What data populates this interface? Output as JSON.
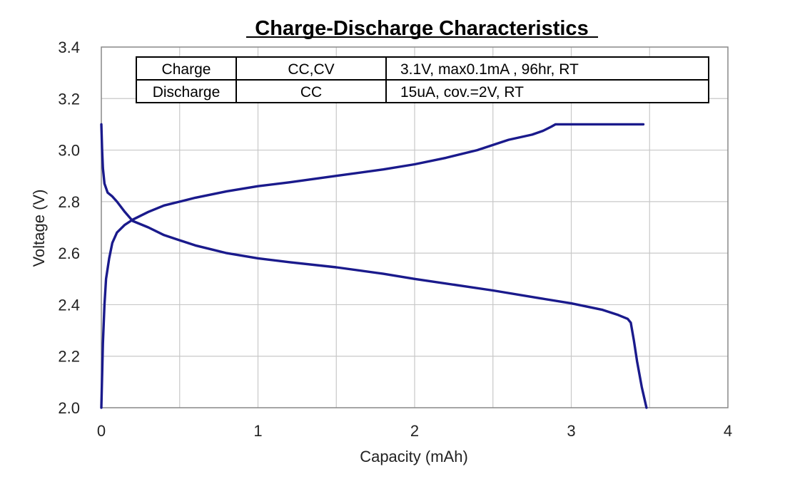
{
  "chart_data": {
    "type": "line",
    "title": "Charge-Discharge Characteristics",
    "xlabel": "Capacity (mAh)",
    "ylabel": "Voltage (V)",
    "xlim": [
      0,
      4
    ],
    "ylim": [
      2.0,
      3.4
    ],
    "xticks": [
      "0",
      "1",
      "2",
      "3",
      "4"
    ],
    "yticks": [
      "2.0",
      "2.2",
      "2.4",
      "2.6",
      "2.8",
      "3.0",
      "3.2",
      "3.4"
    ],
    "grid": true,
    "line_color": "#1a1a8c",
    "condition_table": [
      [
        "Charge",
        "CC,CV",
        "3.1V,  max0.1mA , 96hr,   RT"
      ],
      [
        "Discharge",
        "CC",
        "15uA,  cov.=2V,   RT"
      ]
    ],
    "series": [
      {
        "x": [
          0.0,
          0.01,
          0.02,
          0.03,
          0.05,
          0.07,
          0.1,
          0.15,
          0.2,
          0.3,
          0.4,
          0.5,
          0.6,
          0.8,
          1.0,
          1.2,
          1.5,
          1.8,
          2.0,
          2.2,
          2.4,
          2.6,
          2.75,
          2.82,
          2.87,
          2.9,
          3.0,
          3.2,
          3.46
        ],
        "y": [
          2.0,
          2.25,
          2.4,
          2.5,
          2.58,
          2.64,
          2.68,
          2.71,
          2.73,
          2.76,
          2.785,
          2.8,
          2.815,
          2.84,
          2.86,
          2.875,
          2.9,
          2.925,
          2.945,
          2.97,
          3.0,
          3.04,
          3.06,
          3.075,
          3.09,
          3.1,
          3.1,
          3.1,
          3.1
        ]
      },
      {
        "x": [
          0.0,
          0.005,
          0.01,
          0.02,
          0.04,
          0.07,
          0.1,
          0.15,
          0.2,
          0.3,
          0.4,
          0.5,
          0.6,
          0.7,
          0.8,
          1.0,
          1.2,
          1.5,
          1.8,
          2.0,
          2.5,
          2.8,
          3.0,
          3.2,
          3.3,
          3.36,
          3.38,
          3.4,
          3.42,
          3.45,
          3.48
        ],
        "y": [
          3.1,
          3.0,
          2.93,
          2.87,
          2.835,
          2.82,
          2.8,
          2.76,
          2.725,
          2.7,
          2.67,
          2.65,
          2.63,
          2.615,
          2.6,
          2.58,
          2.565,
          2.545,
          2.52,
          2.5,
          2.455,
          2.425,
          2.405,
          2.38,
          2.36,
          2.345,
          2.33,
          2.26,
          2.18,
          2.08,
          2.0
        ]
      }
    ]
  }
}
